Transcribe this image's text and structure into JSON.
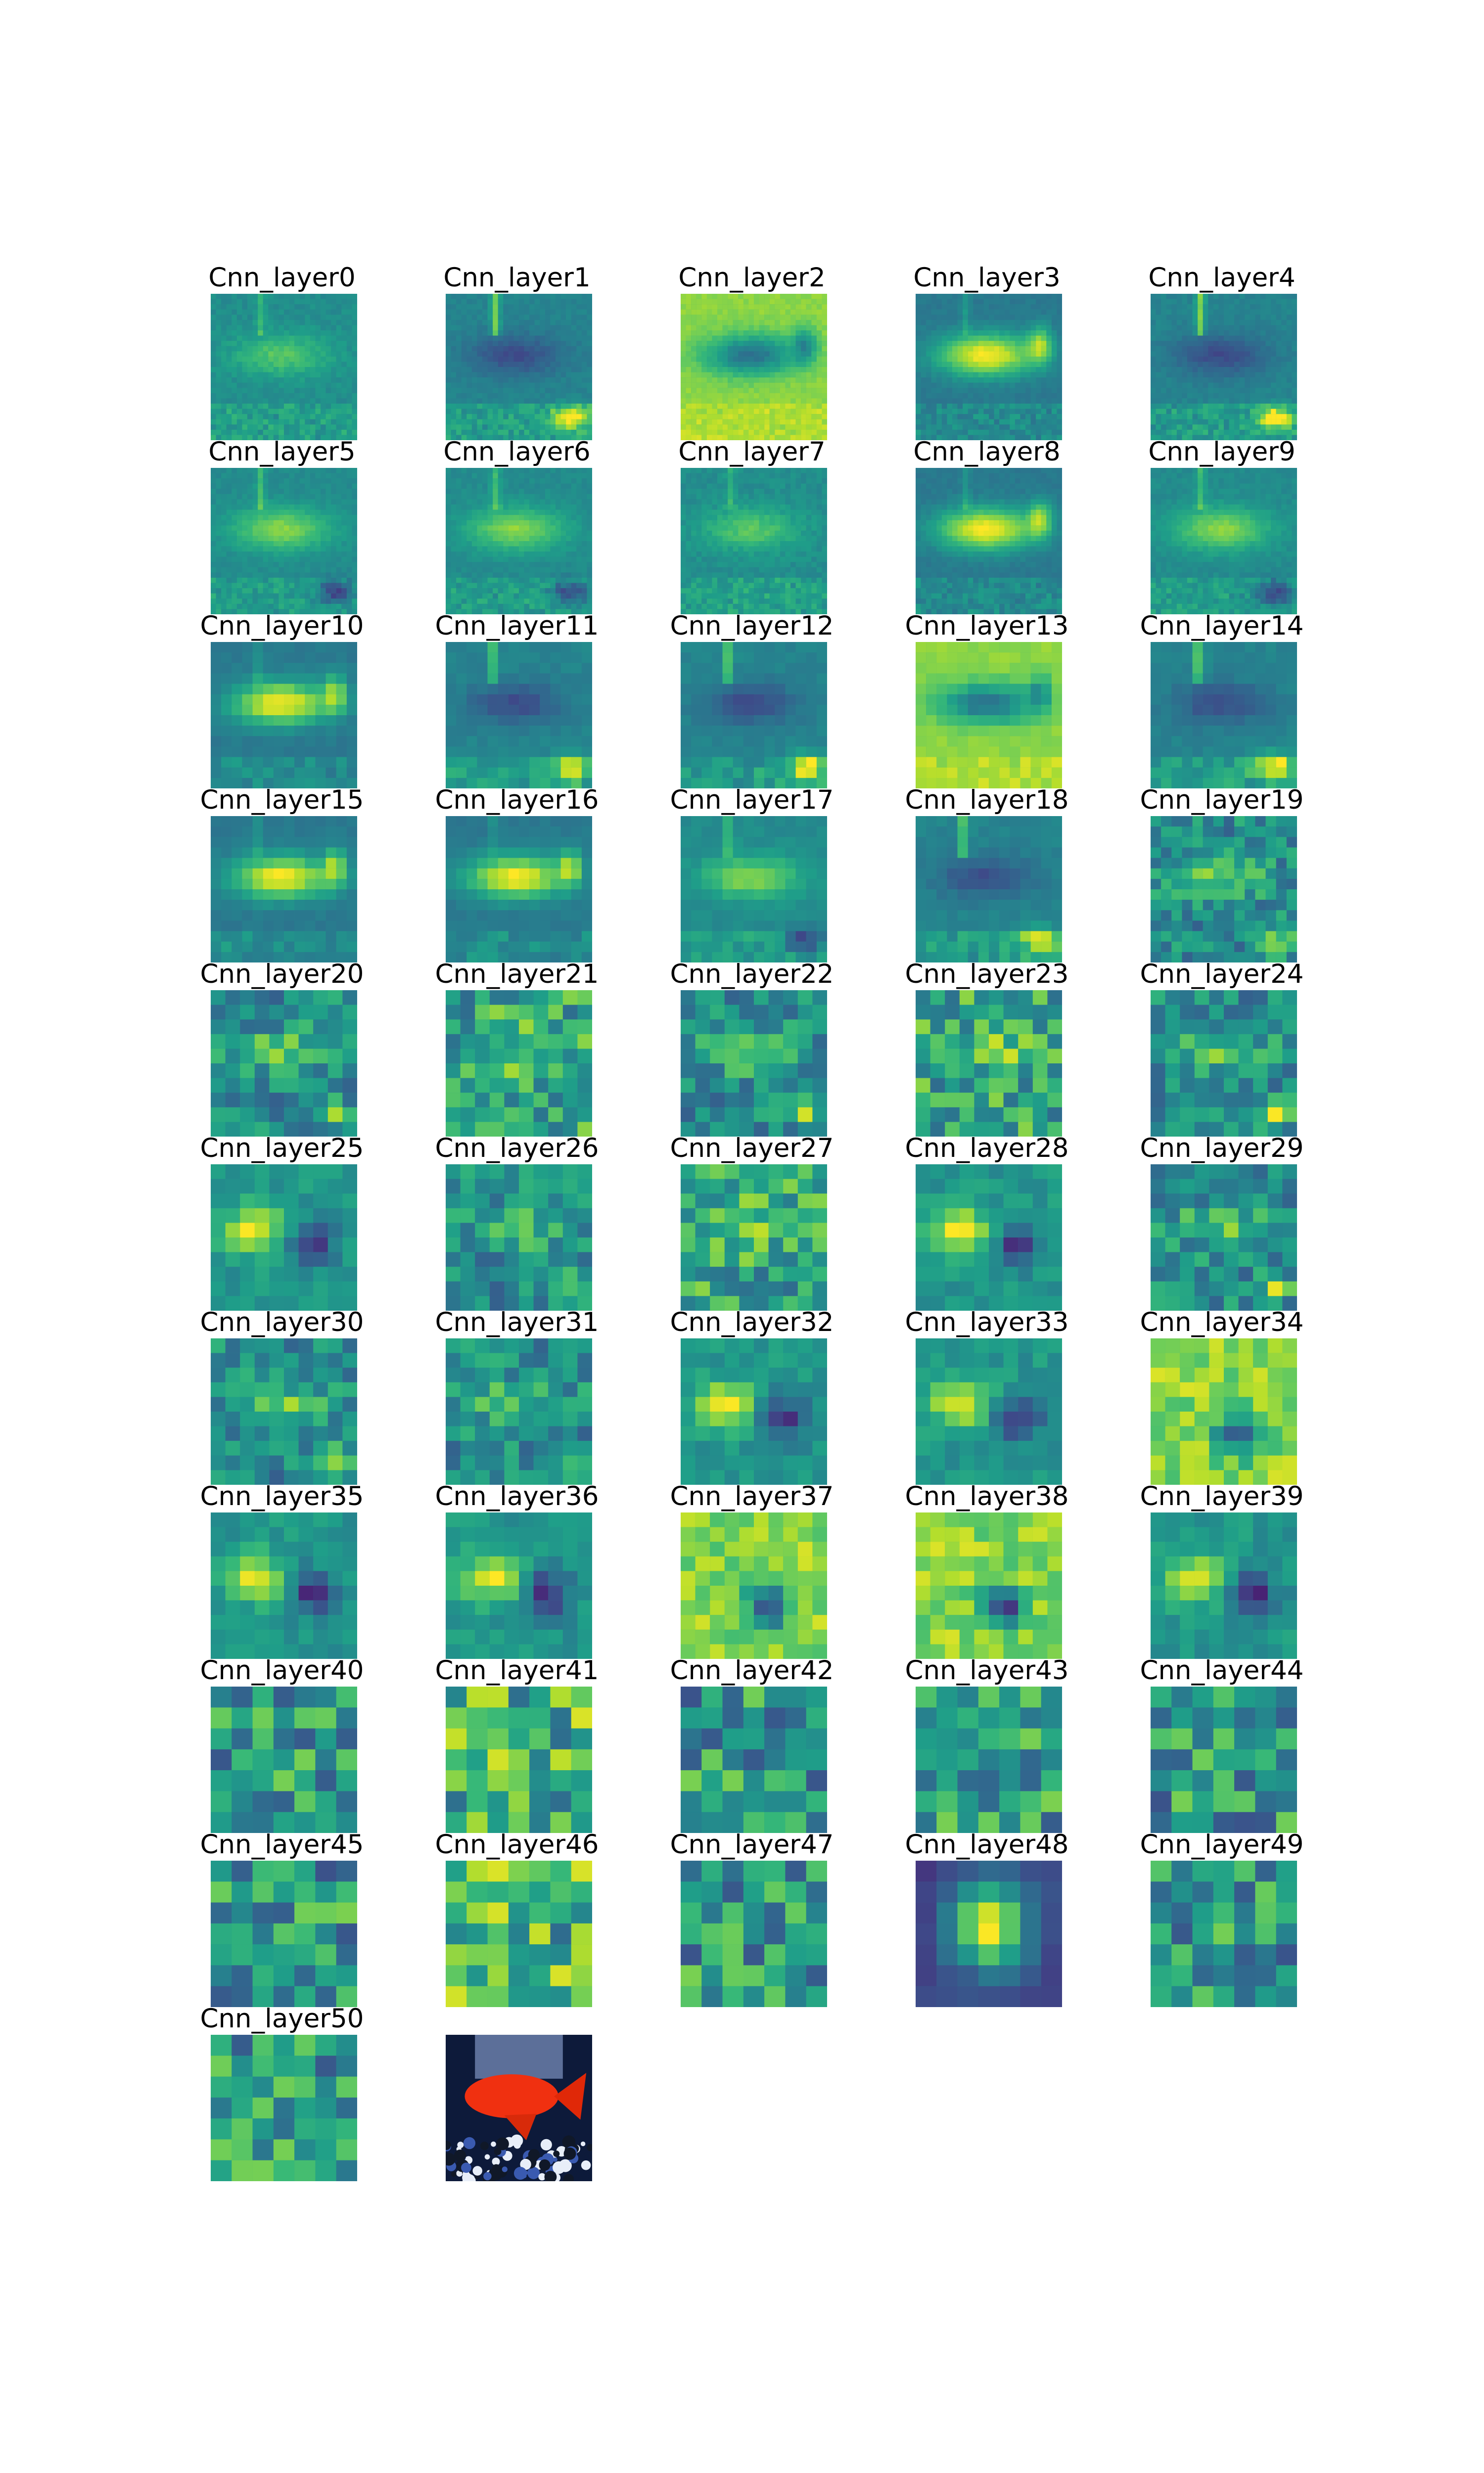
{
  "figure": {
    "panels": [
      {
        "title": "Cnn_layer0",
        "kind": "feature-map",
        "grid": 28,
        "seed": 11,
        "style": "fish-faint"
      },
      {
        "title": "Cnn_layer1",
        "kind": "feature-map",
        "grid": 28,
        "seed": 12,
        "style": "fish-dark"
      },
      {
        "title": "Cnn_layer2",
        "kind": "feature-map",
        "grid": 28,
        "seed": 13,
        "style": "fish-bright-bg"
      },
      {
        "title": "Cnn_layer3",
        "kind": "feature-map",
        "grid": 28,
        "seed": 14,
        "style": "fish-bright"
      },
      {
        "title": "Cnn_layer4",
        "kind": "feature-map",
        "grid": 28,
        "seed": 15,
        "style": "fish-dark"
      },
      {
        "title": "Cnn_layer5",
        "kind": "feature-map",
        "grid": 28,
        "seed": 16,
        "style": "fish-mid"
      },
      {
        "title": "Cnn_layer6",
        "kind": "feature-map",
        "grid": 28,
        "seed": 17,
        "style": "fish-mid"
      },
      {
        "title": "Cnn_layer7",
        "kind": "feature-map",
        "grid": 28,
        "seed": 18,
        "style": "fish-faint"
      },
      {
        "title": "Cnn_layer8",
        "kind": "feature-map",
        "grid": 28,
        "seed": 19,
        "style": "fish-bright"
      },
      {
        "title": "Cnn_layer9",
        "kind": "feature-map",
        "grid": 28,
        "seed": 20,
        "style": "fish-mid"
      },
      {
        "title": "Cnn_layer10",
        "kind": "feature-map",
        "grid": 14,
        "seed": 21,
        "style": "fish-bright"
      },
      {
        "title": "Cnn_layer11",
        "kind": "feature-map",
        "grid": 14,
        "seed": 22,
        "style": "fish-dark"
      },
      {
        "title": "Cnn_layer12",
        "kind": "feature-map",
        "grid": 14,
        "seed": 23,
        "style": "fish-dark"
      },
      {
        "title": "Cnn_layer13",
        "kind": "feature-map",
        "grid": 14,
        "seed": 24,
        "style": "fish-bright-bg"
      },
      {
        "title": "Cnn_layer14",
        "kind": "feature-map",
        "grid": 14,
        "seed": 25,
        "style": "fish-dark"
      },
      {
        "title": "Cnn_layer15",
        "kind": "feature-map",
        "grid": 14,
        "seed": 26,
        "style": "fish-bright"
      },
      {
        "title": "Cnn_layer16",
        "kind": "feature-map",
        "grid": 14,
        "seed": 27,
        "style": "fish-bright"
      },
      {
        "title": "Cnn_layer17",
        "kind": "feature-map",
        "grid": 14,
        "seed": 28,
        "style": "fish-mid"
      },
      {
        "title": "Cnn_layer18",
        "kind": "feature-map",
        "grid": 14,
        "seed": 29,
        "style": "fish-dark"
      },
      {
        "title": "Cnn_layer19",
        "kind": "feature-map",
        "grid": 14,
        "seed": 30,
        "style": "blocky"
      },
      {
        "title": "Cnn_layer20",
        "kind": "feature-map",
        "grid": 10,
        "seed": 31,
        "style": "blocky"
      },
      {
        "title": "Cnn_layer21",
        "kind": "feature-map",
        "grid": 10,
        "seed": 32,
        "style": "blocky-bright"
      },
      {
        "title": "Cnn_layer22",
        "kind": "feature-map",
        "grid": 10,
        "seed": 33,
        "style": "blocky"
      },
      {
        "title": "Cnn_layer23",
        "kind": "feature-map",
        "grid": 10,
        "seed": 34,
        "style": "blocky-bright"
      },
      {
        "title": "Cnn_layer24",
        "kind": "feature-map",
        "grid": 10,
        "seed": 35,
        "style": "blocky"
      },
      {
        "title": "Cnn_layer25",
        "kind": "feature-map",
        "grid": 10,
        "seed": 36,
        "style": "blob"
      },
      {
        "title": "Cnn_layer26",
        "kind": "feature-map",
        "grid": 10,
        "seed": 37,
        "style": "blocky"
      },
      {
        "title": "Cnn_layer27",
        "kind": "feature-map",
        "grid": 10,
        "seed": 38,
        "style": "blocky-bright"
      },
      {
        "title": "Cnn_layer28",
        "kind": "feature-map",
        "grid": 10,
        "seed": 39,
        "style": "blob"
      },
      {
        "title": "Cnn_layer29",
        "kind": "feature-map",
        "grid": 10,
        "seed": 40,
        "style": "blocky"
      },
      {
        "title": "Cnn_layer30",
        "kind": "feature-map",
        "grid": 10,
        "seed": 41,
        "style": "blocky"
      },
      {
        "title": "Cnn_layer31",
        "kind": "feature-map",
        "grid": 10,
        "seed": 42,
        "style": "blocky"
      },
      {
        "title": "Cnn_layer32",
        "kind": "feature-map",
        "grid": 10,
        "seed": 43,
        "style": "blob"
      },
      {
        "title": "Cnn_layer33",
        "kind": "feature-map",
        "grid": 10,
        "seed": 44,
        "style": "blob"
      },
      {
        "title": "Cnn_layer34",
        "kind": "feature-map",
        "grid": 10,
        "seed": 45,
        "style": "blob-bright"
      },
      {
        "title": "Cnn_layer35",
        "kind": "feature-map",
        "grid": 10,
        "seed": 46,
        "style": "blob"
      },
      {
        "title": "Cnn_layer36",
        "kind": "feature-map",
        "grid": 10,
        "seed": 47,
        "style": "blob"
      },
      {
        "title": "Cnn_layer37",
        "kind": "feature-map",
        "grid": 10,
        "seed": 48,
        "style": "blob-bright"
      },
      {
        "title": "Cnn_layer38",
        "kind": "feature-map",
        "grid": 10,
        "seed": 49,
        "style": "blob-bright"
      },
      {
        "title": "Cnn_layer39",
        "kind": "feature-map",
        "grid": 10,
        "seed": 50,
        "style": "blob"
      },
      {
        "title": "Cnn_layer40",
        "kind": "feature-map",
        "grid": 7,
        "seed": 51,
        "style": "coarse"
      },
      {
        "title": "Cnn_layer41",
        "kind": "feature-map",
        "grid": 7,
        "seed": 52,
        "style": "coarse-bright"
      },
      {
        "title": "Cnn_layer42",
        "kind": "feature-map",
        "grid": 7,
        "seed": 53,
        "style": "coarse"
      },
      {
        "title": "Cnn_layer43",
        "kind": "feature-map",
        "grid": 7,
        "seed": 54,
        "style": "coarse"
      },
      {
        "title": "Cnn_layer44",
        "kind": "feature-map",
        "grid": 7,
        "seed": 55,
        "style": "coarse"
      },
      {
        "title": "Cnn_layer45",
        "kind": "feature-map",
        "grid": 7,
        "seed": 56,
        "style": "coarse"
      },
      {
        "title": "Cnn_layer46",
        "kind": "feature-map",
        "grid": 7,
        "seed": 57,
        "style": "coarse-bright"
      },
      {
        "title": "Cnn_layer47",
        "kind": "feature-map",
        "grid": 7,
        "seed": 58,
        "style": "coarse"
      },
      {
        "title": "Cnn_layer48",
        "kind": "feature-map",
        "grid": 7,
        "seed": 59,
        "style": "center-peak"
      },
      {
        "title": "Cnn_layer49",
        "kind": "feature-map",
        "grid": 7,
        "seed": 60,
        "style": "coarse"
      },
      {
        "title": "Cnn_layer50",
        "kind": "feature-map",
        "grid": 7,
        "seed": 61,
        "style": "coarse"
      },
      {
        "title": "",
        "kind": "input-photo",
        "grid": 0,
        "seed": 62,
        "style": "goldfish-photo"
      }
    ],
    "colormap": "viridis"
  }
}
